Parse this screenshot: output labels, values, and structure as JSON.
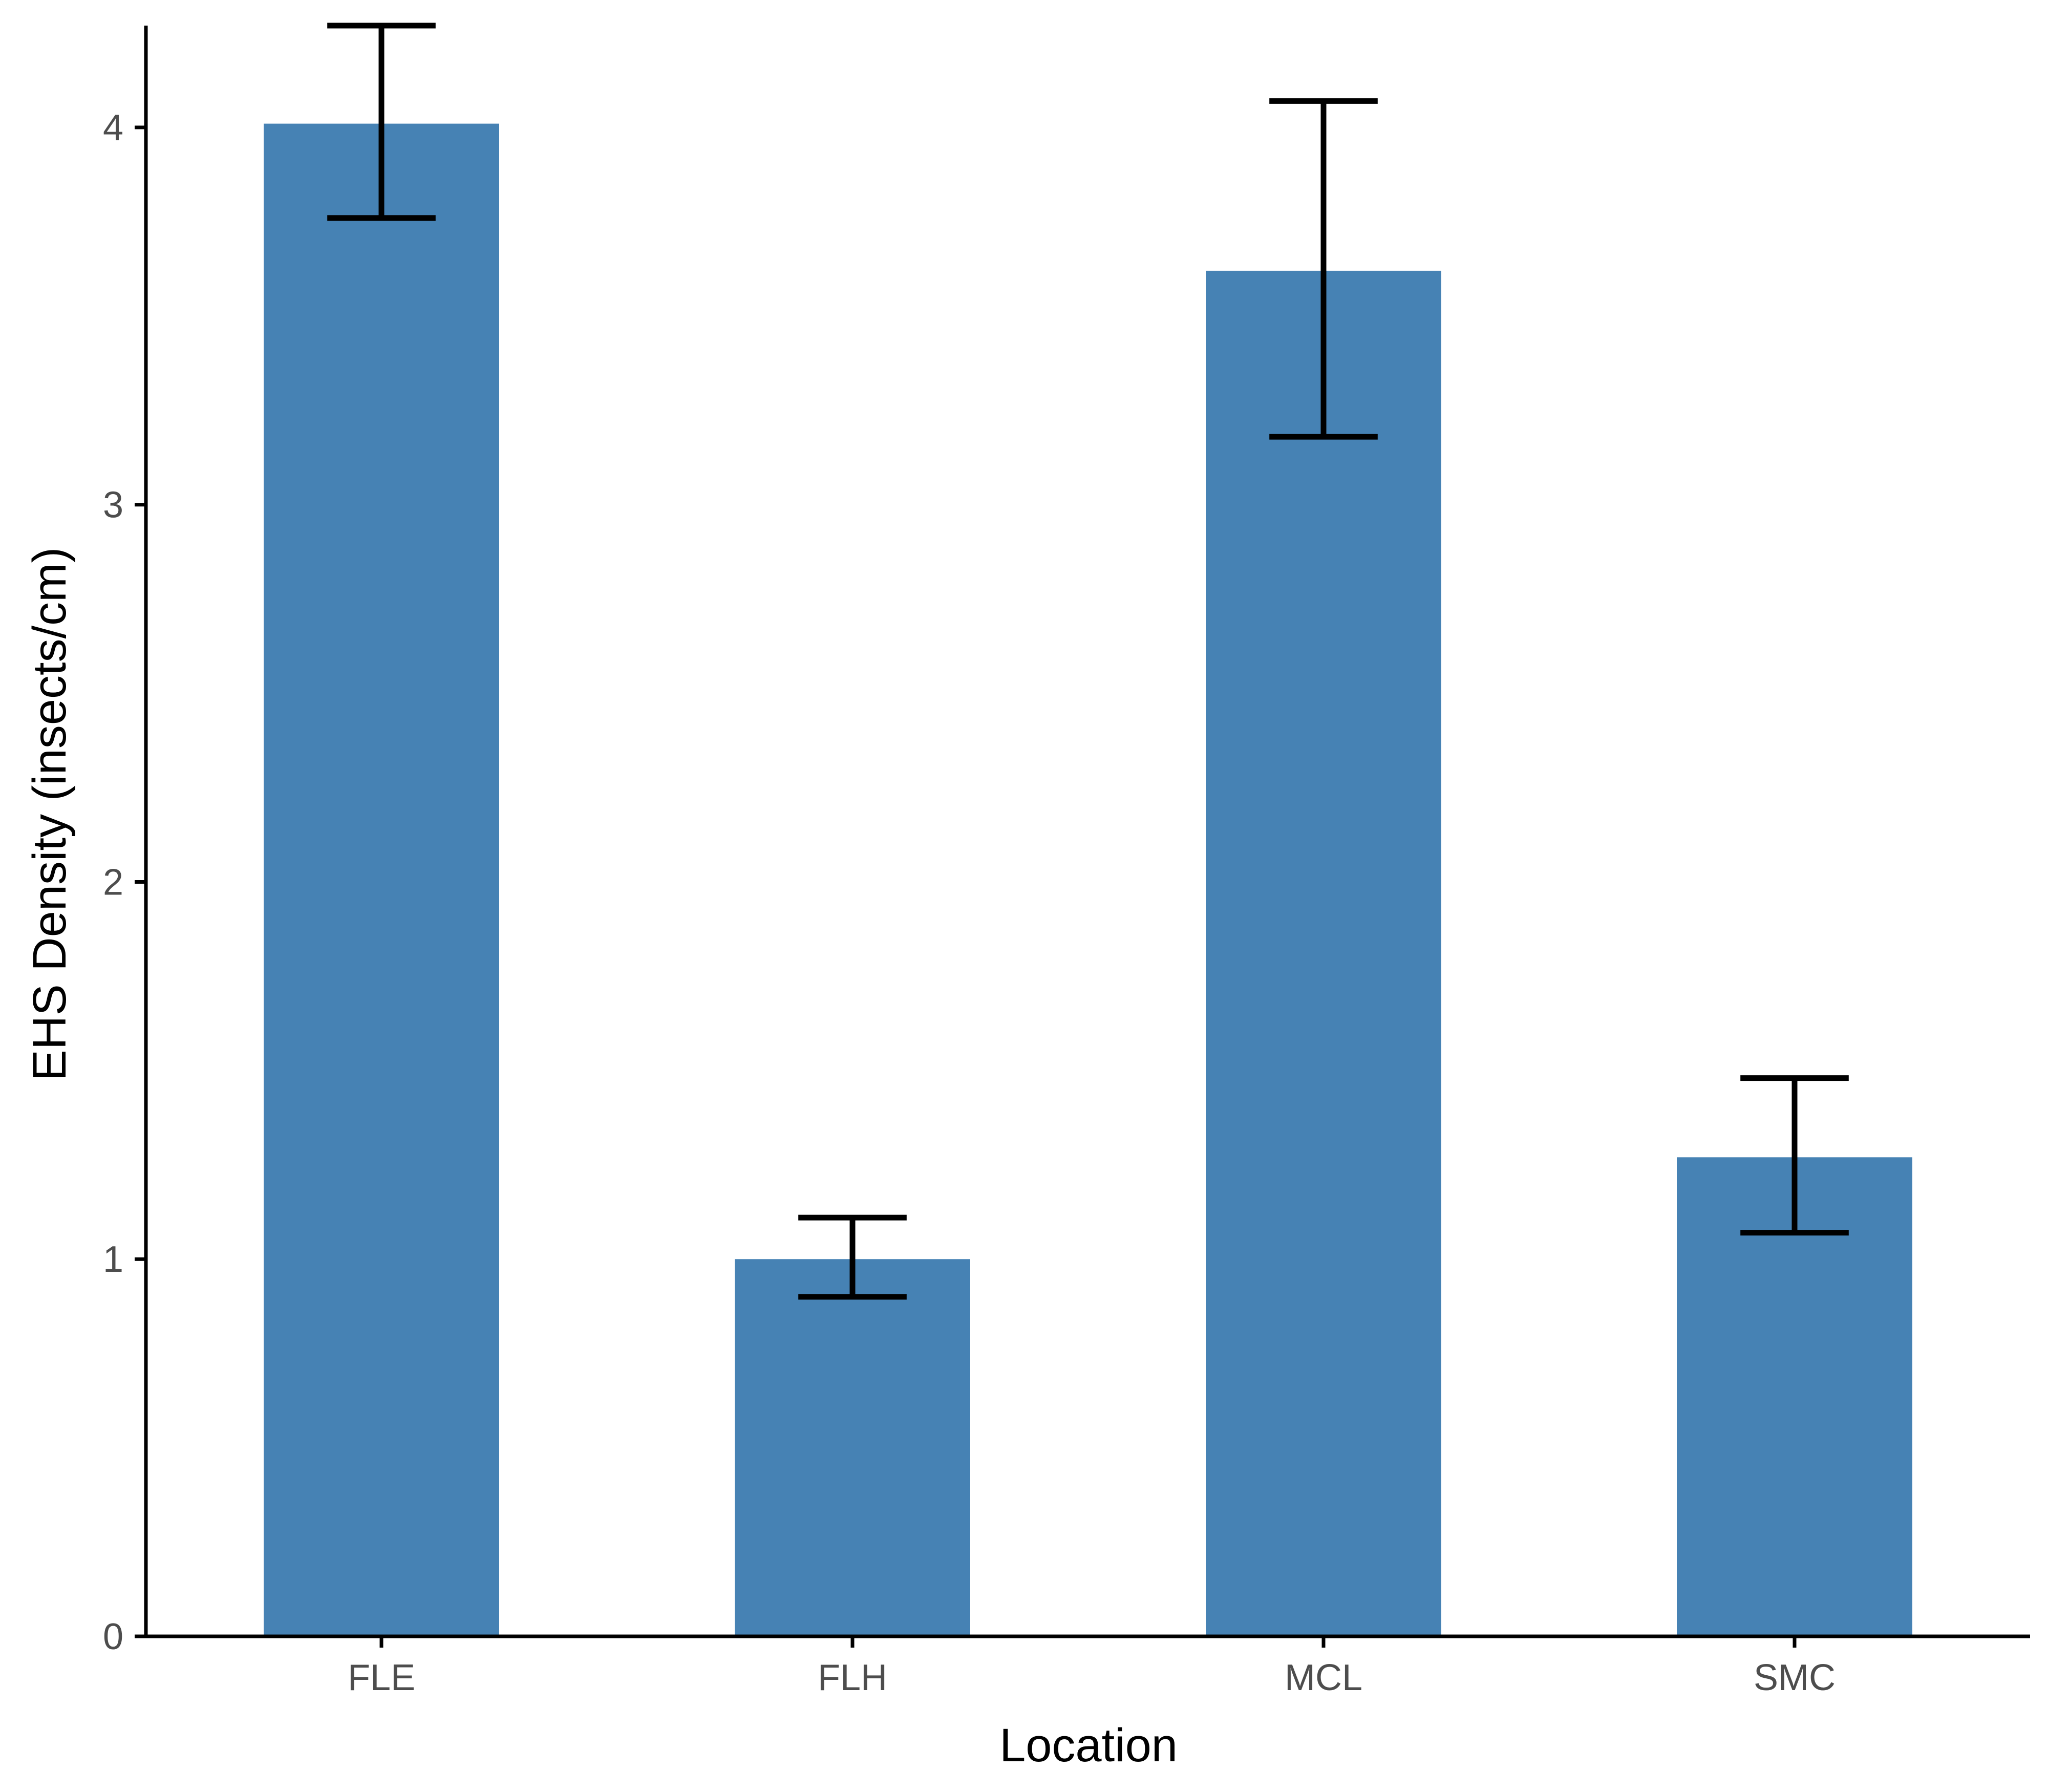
{
  "chart_data": {
    "type": "bar",
    "title": "",
    "xlabel": "Location",
    "ylabel": "EHS Density (insects/cm)",
    "categories": [
      "FLE",
      "FLH",
      "MCL",
      "SMC"
    ],
    "values": [
      4.01,
      1.0,
      3.62,
      1.27
    ],
    "error_low": [
      3.76,
      0.9,
      3.18,
      1.07
    ],
    "error_high": [
      4.27,
      1.11,
      4.07,
      1.48
    ],
    "yticks": [
      "0",
      "1",
      "2",
      "3",
      "4"
    ],
    "ylim": [
      0,
      4.27
    ],
    "grid": false,
    "legend": "none",
    "colors": {
      "bar": "#4682b4",
      "errorbar": "#000000",
      "axis": "#000000",
      "tick_label": "#4d4d4d"
    }
  }
}
